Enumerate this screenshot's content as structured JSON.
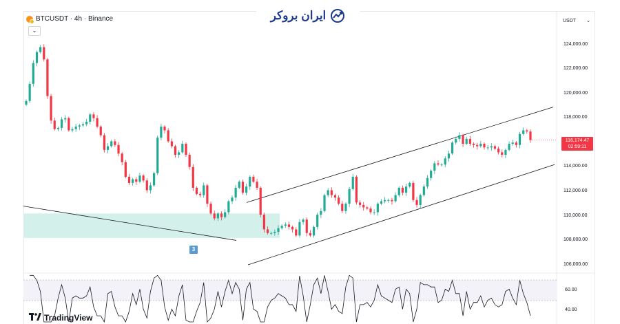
{
  "symbol": {
    "label": "BTCUSDT · 4h · Binance"
  },
  "brand": {
    "name": "ایران بروکر",
    "icon": "chart-trend-icon",
    "color": "#1e3a8a"
  },
  "currency": {
    "value": "USDT"
  },
  "price_axis": {
    "ticks": [
      "124,000.00",
      "122,000.00",
      "120,000.00",
      "118,000.00",
      "116,000.00",
      "114,000.00",
      "112,000.00",
      "110,000.00",
      "108,000.00",
      "106,000.00"
    ]
  },
  "last_price": {
    "price": "116,174.47",
    "countdown": "02:59:11",
    "color": "#f23645"
  },
  "zone": {
    "label": "3",
    "fill": "#d3f0ea"
  },
  "rsi": {
    "ticks": [
      "60.00",
      "40.00"
    ]
  },
  "footer": {
    "logo": "TradingView"
  },
  "colors": {
    "up": "#22ab94",
    "down": "#f23645",
    "line": "#131722"
  },
  "chart_data": {
    "type": "candlestick",
    "symbol": "BTCUSDT",
    "interval": "4h",
    "exchange": "Binance",
    "ylim": [
      105500,
      125500
    ],
    "closes": [
      119400,
      120800,
      122500,
      123400,
      123800,
      122800,
      119800,
      117800,
      117100,
      117200,
      117900,
      118000,
      117000,
      117100,
      117300,
      117400,
      117500,
      117700,
      118300,
      118000,
      117300,
      116600,
      115400,
      115700,
      116100,
      115800,
      115100,
      114400,
      113200,
      112700,
      113000,
      112800,
      113300,
      112900,
      112100,
      112500,
      113500,
      116400,
      117300,
      117000,
      116100,
      115700,
      115000,
      115200,
      115900,
      115000,
      114000,
      112300,
      111800,
      111700,
      112500,
      111000,
      110200,
      109800,
      110200,
      109900,
      110300,
      111200,
      111500,
      112300,
      112800,
      111900,
      112400,
      113200,
      112800,
      112300,
      110100,
      108900,
      108600,
      108600,
      108700,
      109000,
      109200,
      109300,
      109100,
      108900,
      108400,
      109500,
      109700,
      108600,
      108400,
      109100,
      110100,
      110400,
      111700,
      112100,
      111700,
      111500,
      111000,
      110400,
      111000,
      112200,
      113200,
      111100,
      110900,
      110700,
      110600,
      110300,
      110300,
      111000,
      111200,
      111300,
      111300,
      111200,
      111700,
      112300,
      111900,
      112400,
      112700,
      111300,
      110900,
      111700,
      112400,
      113100,
      113700,
      114300,
      114200,
      114200,
      114700,
      115100,
      116000,
      116300,
      116600,
      115900,
      116300,
      115900,
      115800,
      115700,
      115900,
      115600,
      115600,
      115700,
      115500,
      115200,
      115000,
      115400,
      115900,
      116000,
      115800,
      116700,
      117000,
      116900,
      116200
    ],
    "channel": {
      "upper": [
        [
          111100,
          118900
        ]
      ],
      "lower": [
        [
          106000,
          114200
        ]
      ]
    },
    "support_line": {
      "from": 110800,
      "to": 108000
    },
    "demand_zone": {
      "top": 110200,
      "bottom": 108200,
      "label": "3"
    },
    "rsi_ticks": [
      60,
      40
    ]
  }
}
